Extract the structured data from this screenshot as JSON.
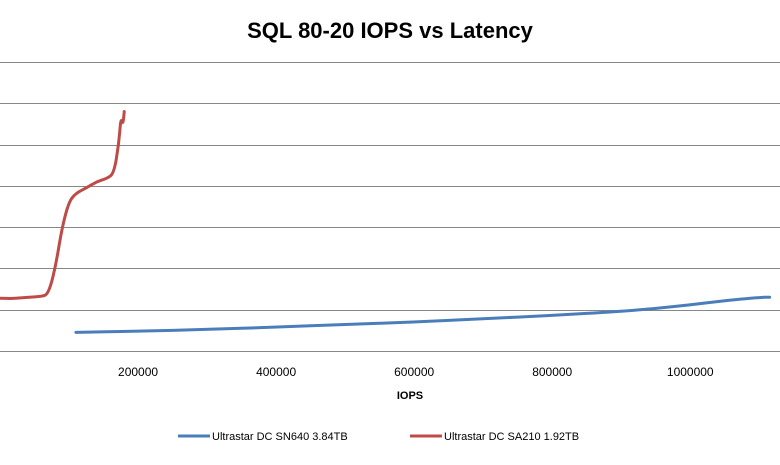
{
  "chart_data": {
    "type": "line",
    "title": "SQL 80-20 IOPS vs Latency",
    "xlabel": "IOPS",
    "ylabel": "",
    "xlim": [
      0,
      1130000
    ],
    "ylim": [
      0,
      7
    ],
    "x_ticks": [
      200000,
      400000,
      600000,
      800000,
      1000000
    ],
    "y_gridlines": [
      1,
      2,
      3,
      4,
      5,
      6,
      7
    ],
    "grid": "horizontal",
    "legend": "bottom",
    "series": [
      {
        "name": "Ultrastar DC SN640 3.84TB",
        "color": "#4a7ebb",
        "points": [
          [
            110000,
            0.45
          ],
          [
            200000,
            0.48
          ],
          [
            300000,
            0.52
          ],
          [
            400000,
            0.58
          ],
          [
            500000,
            0.64
          ],
          [
            600000,
            0.7
          ],
          [
            700000,
            0.78
          ],
          [
            800000,
            0.86
          ],
          [
            900000,
            0.96
          ],
          [
            950000,
            1.03
          ],
          [
            1000000,
            1.12
          ],
          [
            1050000,
            1.22
          ],
          [
            1100000,
            1.3
          ],
          [
            1115000,
            1.3
          ]
        ]
      },
      {
        "name": "Ultrastar DC SA210 1.92TB",
        "color": "#be4b48",
        "points": [
          [
            0,
            1.28
          ],
          [
            20000,
            1.27
          ],
          [
            40000,
            1.3
          ],
          [
            60000,
            1.32
          ],
          [
            70000,
            1.38
          ],
          [
            80000,
            2.0
          ],
          [
            90000,
            3.0
          ],
          [
            100000,
            3.62
          ],
          [
            110000,
            3.82
          ],
          [
            125000,
            3.95
          ],
          [
            140000,
            4.1
          ],
          [
            155000,
            4.18
          ],
          [
            165000,
            4.3
          ],
          [
            172000,
            5.0
          ],
          [
            175000,
            5.65
          ],
          [
            178000,
            5.48
          ],
          [
            180000,
            5.8
          ]
        ]
      }
    ]
  }
}
